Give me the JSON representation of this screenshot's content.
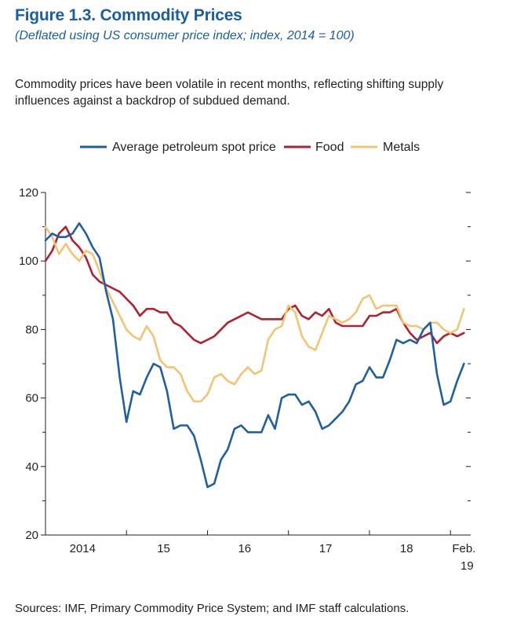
{
  "figure": {
    "title": "Figure 1.3.  Commodity Prices",
    "subtitle": "(Deflated using US consumer price index; index, 2014 = 100)",
    "description": "Commodity prices have been volatile in recent months, reflecting shifting supply influences against a backdrop of subdued demand.",
    "source": "Sources: IMF, Primary Commodity Price System; and IMF staff calculations."
  },
  "chart_data": {
    "type": "line",
    "title": "Figure 1.3.  Commodity Prices",
    "xlabel": "",
    "ylabel": "",
    "ylim": [
      20,
      120
    ],
    "xlim": [
      0,
      63
    ],
    "grid": false,
    "legend_position": "top",
    "y_ticks": [
      "120",
      "100",
      "80",
      "60",
      "40",
      "20"
    ],
    "y_tick_values": [
      120,
      100,
      80,
      60,
      40,
      20
    ],
    "y_minor_tick_values": [
      110,
      90,
      70,
      50,
      30
    ],
    "x_labels": [
      {
        "label": "2014",
        "x": 5.5
      },
      {
        "label": "15",
        "x": 17.5
      },
      {
        "label": "16",
        "x": 29.5
      },
      {
        "label": "17",
        "x": 41.5
      },
      {
        "label": "18",
        "x": 53.5
      },
      {
        "label": "Feb.",
        "label2": "19",
        "x": 62
      }
    ],
    "x_tick_positions": [
      0,
      12,
      24,
      36,
      48,
      60
    ],
    "series": [
      {
        "name": "Average petroleum spot price",
        "color": "#1f5fa4",
        "x": [
          0,
          1,
          2,
          3,
          4,
          5,
          6,
          7,
          8,
          9,
          10,
          11,
          12,
          13,
          14,
          15,
          16,
          17,
          18,
          19,
          20,
          21,
          22,
          23,
          24,
          25,
          26,
          27,
          28,
          29,
          30,
          31,
          32,
          33,
          34,
          35,
          36,
          37,
          38,
          39,
          40,
          41,
          42,
          43,
          44,
          45,
          46,
          47,
          48,
          49,
          50,
          51,
          52,
          53,
          54,
          55,
          56,
          57,
          58,
          59,
          60,
          61,
          62
        ],
        "values": [
          106,
          108,
          107,
          107,
          108,
          111,
          108,
          104,
          101,
          91,
          83,
          66,
          53,
          62,
          61,
          66,
          70,
          69,
          62,
          51,
          52,
          52,
          49,
          42,
          34,
          35,
          42,
          45,
          51,
          52,
          50,
          50,
          50,
          55,
          51,
          60,
          61,
          61,
          58,
          59,
          56,
          51,
          52,
          54,
          56,
          59,
          64,
          65,
          69,
          66,
          66,
          71,
          77,
          76,
          77,
          76,
          80,
          82,
          67,
          58,
          59,
          65,
          70
        ]
      },
      {
        "name": "Food",
        "color": "#b2212f",
        "x": [
          0,
          1,
          2,
          3,
          4,
          5,
          6,
          7,
          8,
          9,
          10,
          11,
          12,
          13,
          14,
          15,
          16,
          17,
          18,
          19,
          20,
          21,
          22,
          23,
          24,
          25,
          26,
          27,
          28,
          29,
          30,
          31,
          32,
          33,
          34,
          35,
          36,
          37,
          38,
          39,
          40,
          41,
          42,
          43,
          44,
          45,
          46,
          47,
          48,
          49,
          50,
          51,
          52,
          53,
          54,
          55,
          56,
          57,
          58,
          59,
          60,
          61,
          62
        ],
        "values": [
          100,
          103,
          108,
          110,
          106,
          104,
          101,
          96,
          94,
          93,
          92,
          91,
          89,
          87,
          84,
          86,
          86,
          85,
          85,
          82,
          81,
          79,
          77,
          76,
          77,
          78,
          80,
          82,
          83,
          84,
          85,
          84,
          83,
          83,
          83,
          83,
          86,
          87,
          84,
          83,
          85,
          84,
          86,
          82,
          81,
          81,
          81,
          81,
          84,
          84,
          85,
          85,
          86,
          82,
          79,
          77,
          78,
          79,
          76,
          78,
          79,
          78,
          79
        ]
      },
      {
        "name": "Metals",
        "color": "#f2c572",
        "x": [
          0,
          1,
          2,
          3,
          4,
          5,
          6,
          7,
          8,
          9,
          10,
          11,
          12,
          13,
          14,
          15,
          16,
          17,
          18,
          19,
          20,
          21,
          22,
          23,
          24,
          25,
          26,
          27,
          28,
          29,
          30,
          31,
          32,
          33,
          34,
          35,
          36,
          37,
          38,
          39,
          40,
          41,
          42,
          43,
          44,
          45,
          46,
          47,
          48,
          49,
          50,
          51,
          52,
          53,
          54,
          55,
          56,
          57,
          58,
          59,
          60,
          61,
          62
        ],
        "values": [
          110,
          107,
          102,
          105,
          102,
          100,
          103,
          102,
          97,
          92,
          88,
          84,
          80,
          78,
          77,
          81,
          78,
          71,
          69,
          69,
          67,
          62,
          59,
          59,
          61,
          66,
          67,
          65,
          64,
          67,
          69,
          67,
          68,
          77,
          80,
          81,
          87,
          85,
          78,
          75,
          74,
          79,
          84,
          83,
          82,
          83,
          85,
          89,
          90,
          86,
          87,
          87,
          87,
          82,
          81,
          81,
          80,
          82,
          82,
          80,
          79,
          80,
          86
        ]
      }
    ]
  }
}
